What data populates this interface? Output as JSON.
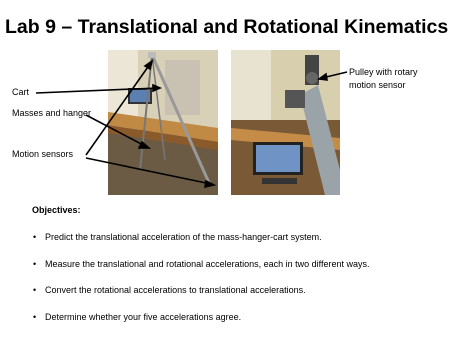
{
  "header": {
    "title": "Lab 9 – Translational and Rotational Kinematics"
  },
  "callouts": {
    "cart": "Cart",
    "masses": "Masses and hanger",
    "sensors": "Motion sensors",
    "pulley": "Pulley with rotary motion sensor"
  },
  "objectives": {
    "heading": "Objectives:",
    "items": [
      "Predict the translational acceleration of the mass-hanger-cart system.",
      "Measure the translational and rotational accelerations, each in two different ways.",
      "Convert the rotational accelerations to translational accelerations.",
      "Determine whether your five accelerations agree."
    ]
  }
}
